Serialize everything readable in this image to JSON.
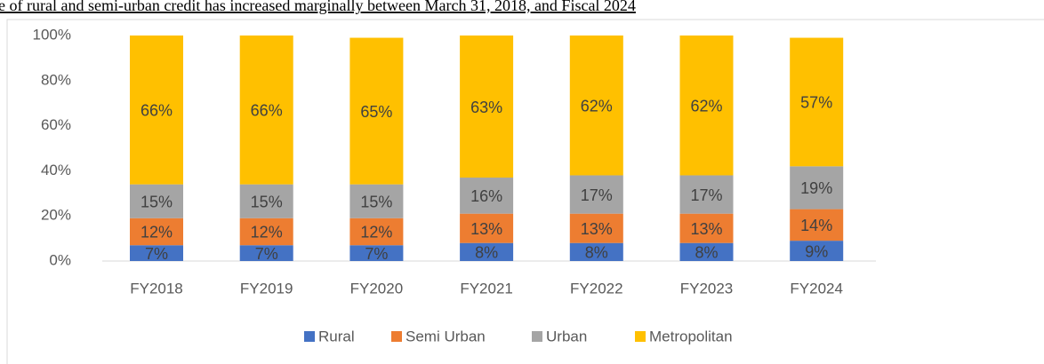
{
  "chart_data": {
    "type": "stacked_bar",
    "title": "e of rural and semi-urban credit has increased marginally between March 31, 2018, and Fiscal 2024",
    "categories": [
      "FY2018",
      "FY2019",
      "FY2020",
      "FY2021",
      "FY2022",
      "FY2023",
      "FY2024"
    ],
    "series": [
      {
        "name": "Rural",
        "color": "#4472c4",
        "values": [
          7,
          7,
          7,
          8,
          8,
          8,
          9
        ],
        "value_labels": [
          "7%",
          "7%",
          "7%",
          "8%",
          "8%",
          "8%",
          "9%"
        ]
      },
      {
        "name": "Semi Urban",
        "color": "#ed7d31",
        "values": [
          12,
          12,
          12,
          13,
          13,
          13,
          14
        ],
        "value_labels": [
          "12%",
          "12%",
          "12%",
          "13%",
          "13%",
          "13%",
          "14%"
        ]
      },
      {
        "name": "Urban",
        "color": "#a5a5a5",
        "values": [
          15,
          15,
          15,
          16,
          17,
          17,
          19
        ],
        "value_labels": [
          "15%",
          "15%",
          "15%",
          "16%",
          "17%",
          "17%",
          "19%"
        ]
      },
      {
        "name": "Metropolitan",
        "color": "#ffc000",
        "values": [
          66,
          66,
          65,
          63,
          62,
          62,
          57
        ],
        "value_labels": [
          "66%",
          "66%",
          "65%",
          "63%",
          "62%",
          "62%",
          "57%"
        ]
      }
    ],
    "ylim": [
      0,
      100
    ],
    "yticks": [
      {
        "value": 0,
        "label": "0%"
      },
      {
        "value": 20,
        "label": "20%"
      },
      {
        "value": 40,
        "label": "40%"
      },
      {
        "value": 60,
        "label": "60%"
      },
      {
        "value": 80,
        "label": "80%"
      },
      {
        "value": 100,
        "label": "100%"
      }
    ],
    "grid": false,
    "legend": "bottom"
  }
}
